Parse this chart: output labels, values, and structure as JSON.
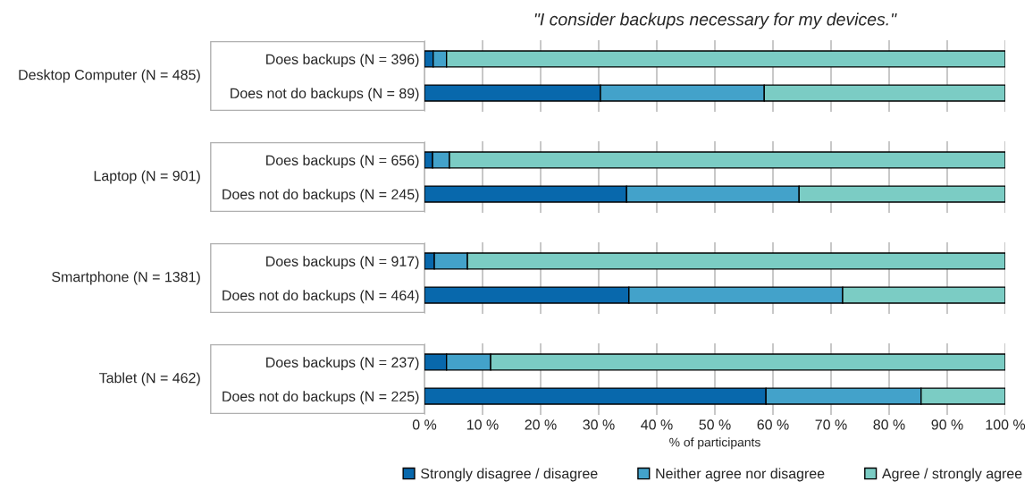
{
  "chart_data": [
    {
      "type": "bar",
      "orientation": "horizontal",
      "stacked": true,
      "title": "\"I consider backups necessary for my devices.\"",
      "ylabel": "Desktop Computer (N = 485)",
      "categories": [
        "Does backups (N = 396)",
        "Does not do backups (N = 89)"
      ],
      "series": [
        {
          "name": "Strongly disagree / disagree",
          "color": "#0868ac",
          "values": [
            1.5,
            30.3
          ]
        },
        {
          "name": "Neither agree nor disagree",
          "color": "#43a2ca",
          "values": [
            2.3,
            28.2
          ]
        },
        {
          "name": "Agree / strongly agree",
          "color": "#7bccc4",
          "values": [
            96.2,
            41.5
          ]
        }
      ],
      "xlim": [
        0,
        100
      ],
      "xticks": [
        0,
        10,
        20,
        30,
        40,
        50,
        60,
        70,
        80,
        90,
        100
      ],
      "grid": "x",
      "tick_labels": "y",
      "legend": "bottom"
    },
    {
      "type": "bar",
      "orientation": "horizontal",
      "stacked": true,
      "ylabel": "Laptop (N = 901)",
      "categories": [
        "Does backups (N = 656)",
        "Does not do backups (N = 245)"
      ],
      "series": [
        {
          "color": "#0868ac",
          "values": [
            1.4,
            34.8
          ]
        },
        {
          "color": "#43a2ca",
          "values": [
            2.9,
            29.7
          ]
        },
        {
          "color": "#7bccc4",
          "values": [
            95.7,
            35.5
          ]
        }
      ],
      "xlim": [
        0,
        100
      ],
      "xticks": [
        0,
        10,
        20,
        30,
        40,
        50,
        60,
        70,
        80,
        90,
        100
      ],
      "grid": "x",
      "tick_labels": "y"
    },
    {
      "type": "bar",
      "orientation": "horizontal",
      "stacked": true,
      "ylabel": "Smartphone (N = 1381)",
      "categories": [
        "Does backups (N = 917)",
        "Does not do backups (N = 464)"
      ],
      "series": [
        {
          "color": "#0868ac",
          "values": [
            1.7,
            35.2
          ]
        },
        {
          "color": "#43a2ca",
          "values": [
            5.7,
            36.8
          ]
        },
        {
          "color": "#7bccc4",
          "values": [
            92.6,
            28.0
          ]
        }
      ],
      "xlim": [
        0,
        100
      ],
      "xticks": [
        0,
        10,
        20,
        30,
        40,
        50,
        60,
        70,
        80,
        90,
        100
      ],
      "grid": "x",
      "tick_labels": "y"
    },
    {
      "type": "bar",
      "orientation": "horizontal",
      "stacked": true,
      "ylabel": "Tablet (N = 462)",
      "xlabel": "% of participants",
      "categories": [
        "Does backups (N = 237)",
        "Does not do backups (N = 225)"
      ],
      "series": [
        {
          "color": "#0868ac",
          "values": [
            3.8,
            58.8
          ]
        },
        {
          "color": "#43a2ca",
          "values": [
            7.6,
            26.7
          ]
        },
        {
          "color": "#7bccc4",
          "values": [
            88.6,
            14.5
          ]
        }
      ],
      "xlim": [
        0,
        100
      ],
      "xticks": [
        {
          "value": 0,
          "label": "0 %"
        },
        {
          "value": 10,
          "label": "10 %"
        },
        {
          "value": 20,
          "label": "20 %"
        },
        {
          "value": 30,
          "label": "30 %"
        },
        {
          "value": 40,
          "label": "40 %"
        },
        {
          "value": 50,
          "label": "50 %"
        },
        {
          "value": 60,
          "label": "60 %"
        },
        {
          "value": 70,
          "label": "70 %"
        },
        {
          "value": 80,
          "label": "80 %"
        },
        {
          "value": 90,
          "label": "90 %"
        },
        {
          "value": 100,
          "label": "100 %"
        }
      ],
      "grid": "x"
    }
  ]
}
